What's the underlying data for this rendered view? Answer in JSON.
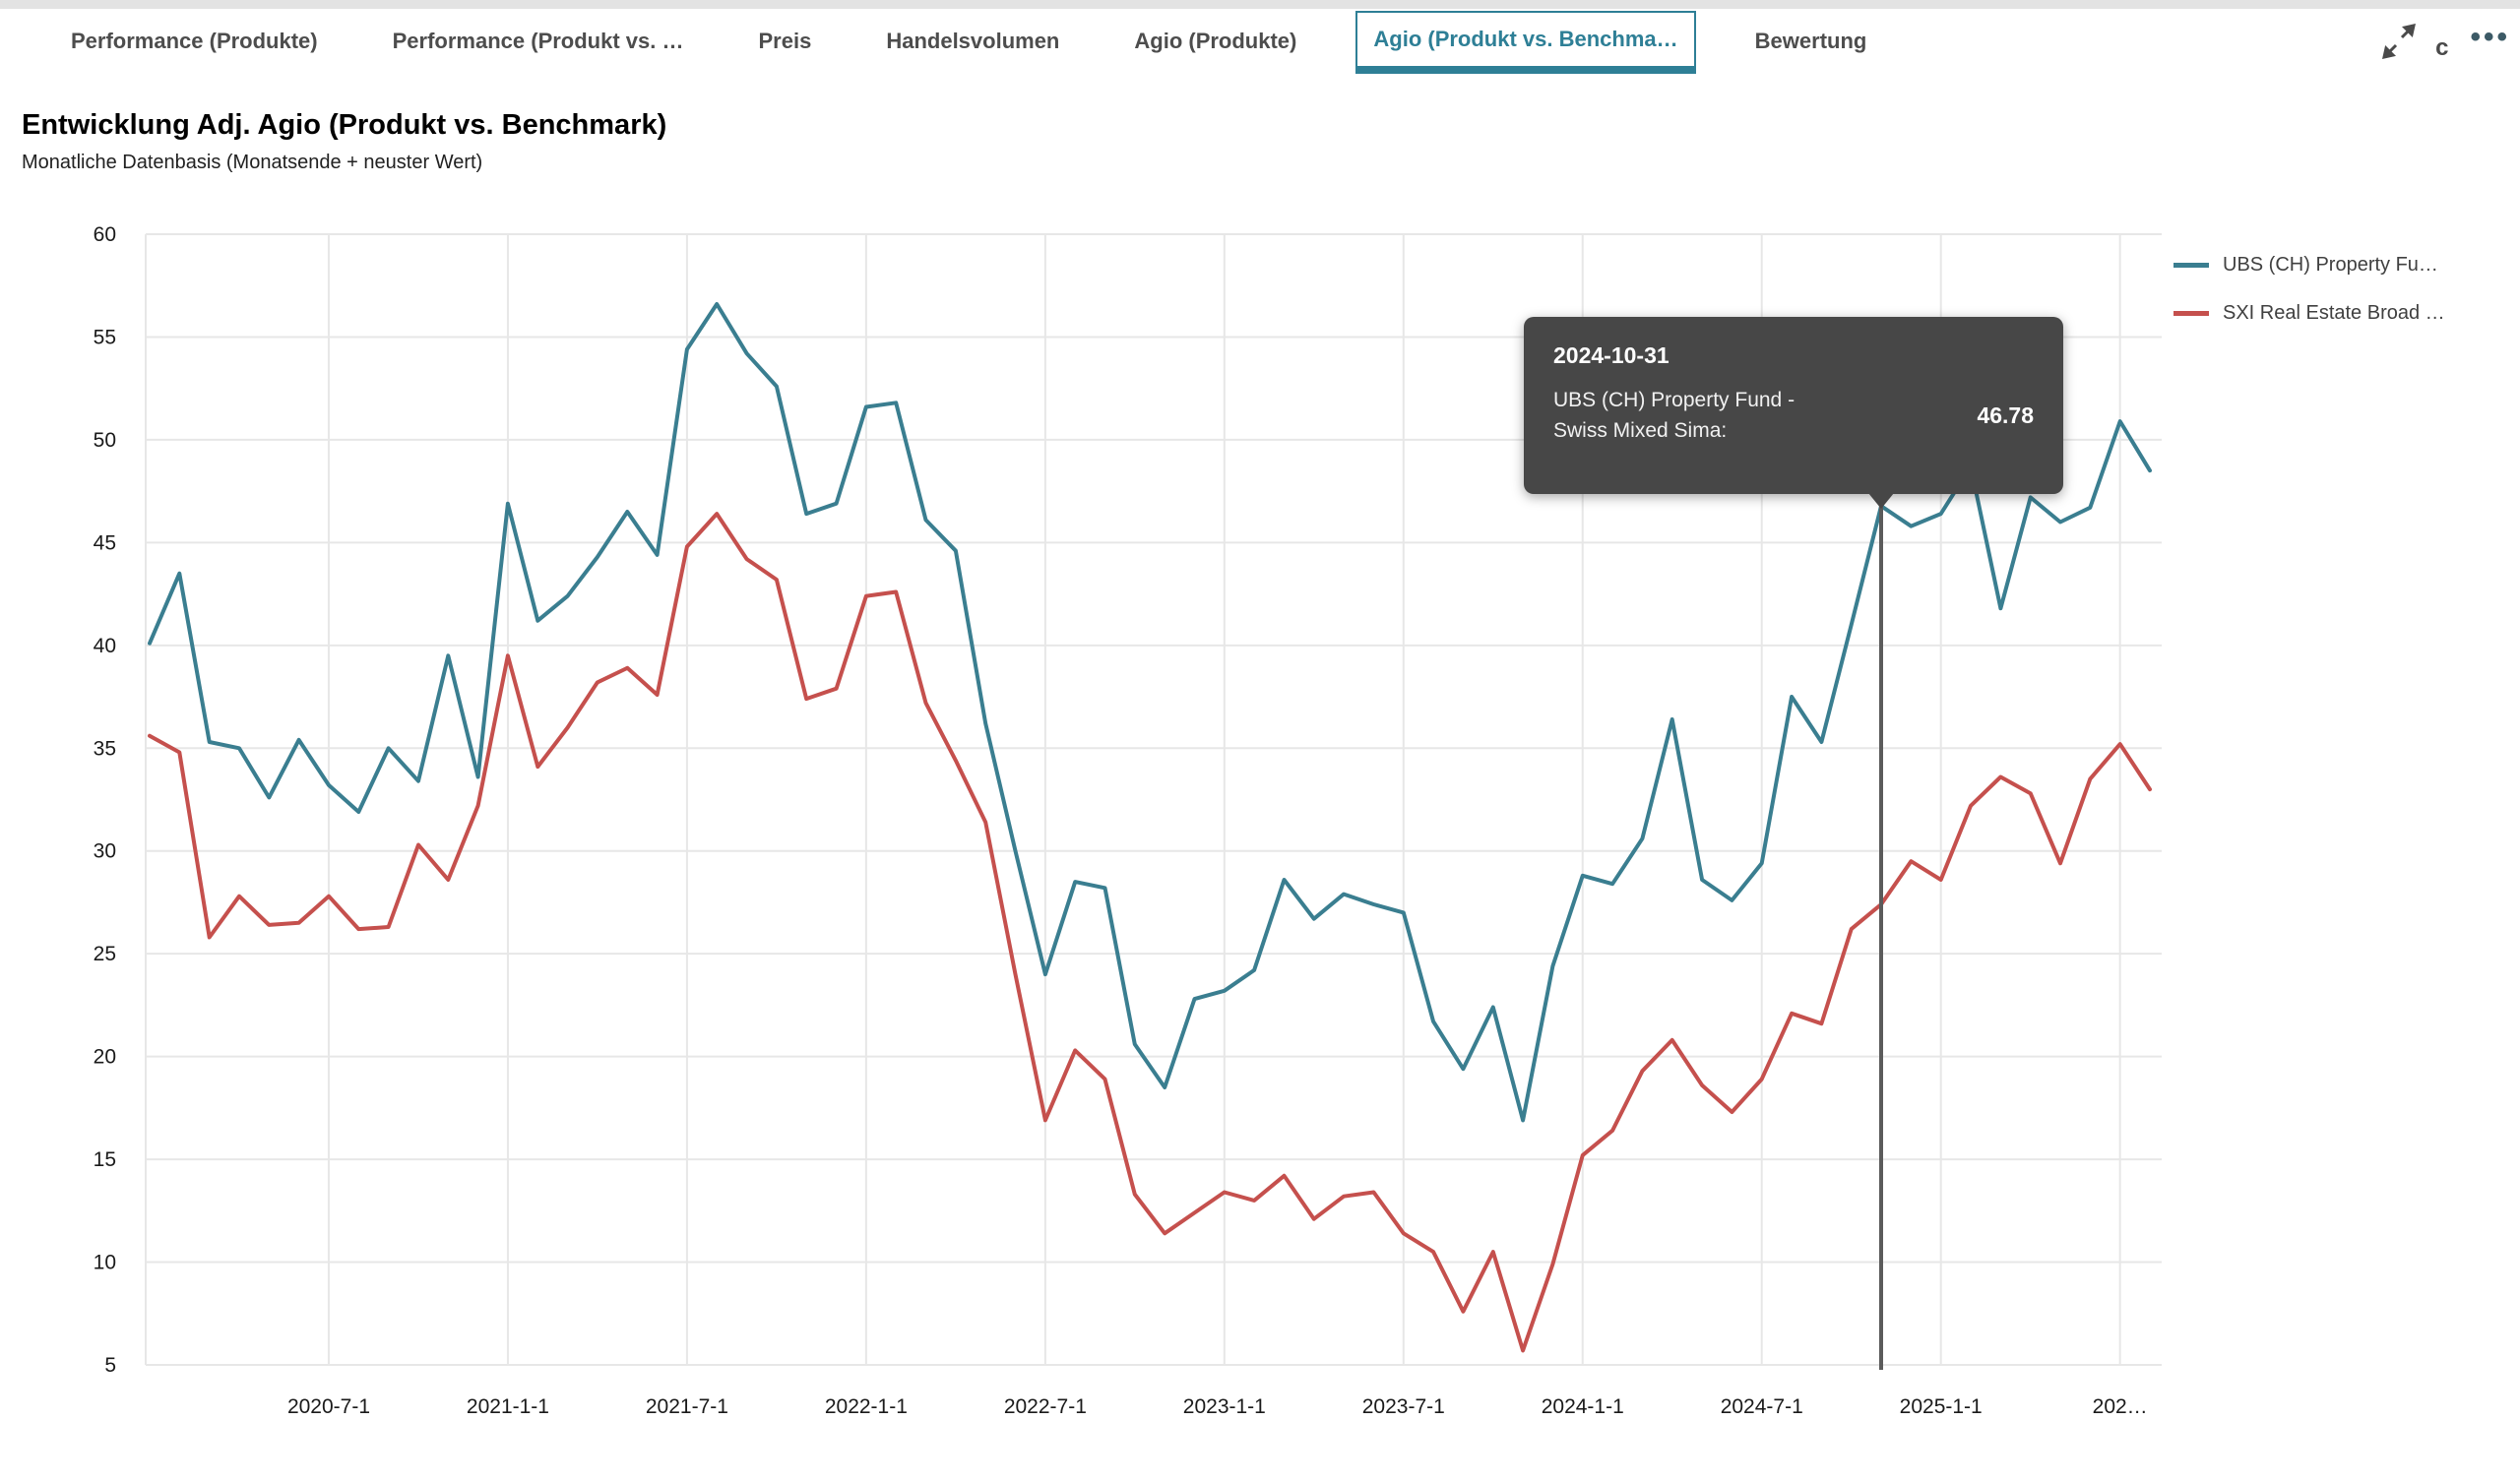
{
  "tab_bar": {
    "tabs": [
      {
        "id": "performance-produkte",
        "label": "Performance (Produkte)",
        "active": false
      },
      {
        "id": "performance-produkt-vs",
        "label": "Performance (Produkt vs. …",
        "active": false
      },
      {
        "id": "preis",
        "label": "Preis",
        "active": false
      },
      {
        "id": "handelsvolumen",
        "label": "Handelsvolumen",
        "active": false
      },
      {
        "id": "agio-produkte",
        "label": "Agio (Produkte)",
        "active": false
      },
      {
        "id": "agio-produkt-vs-benchmark",
        "label": "Agio (Produkt vs. Benchma…",
        "active": true
      },
      {
        "id": "bewertung",
        "label": "Bewertung",
        "active": false
      }
    ],
    "more_label": "•••",
    "c_glyph": "c"
  },
  "header": {
    "title": "Entwicklung Adj. Agio (Produkt vs. Benchmark)",
    "subtitle": "Monatliche Datenbasis (Monatsende + neuster Wert)"
  },
  "legend": {
    "items": [
      {
        "label": "UBS (CH) Property Fu…",
        "color": "#3a7e90"
      },
      {
        "label": "SXI Real Estate Broad …",
        "color": "#c5504d"
      }
    ]
  },
  "tooltip": {
    "date": "2024-10-31",
    "series_line1": "UBS (CH) Property Fund -",
    "series_line2": "Swiss Mixed Sima:",
    "value": "46.78"
  },
  "chart_data": {
    "type": "line",
    "title": "Entwicklung Adj. Agio (Produkt vs. Benchmark)",
    "xlabel": "",
    "ylabel": "",
    "ylim": [
      5,
      60
    ],
    "yticks": [
      5,
      10,
      15,
      20,
      25,
      30,
      35,
      40,
      45,
      50,
      55,
      60
    ],
    "grid": true,
    "legend_position": "top-right",
    "x": [
      "2019-12",
      "2020-01",
      "2020-02",
      "2020-03",
      "2020-04",
      "2020-05",
      "2020-06",
      "2020-07",
      "2020-08",
      "2020-09",
      "2020-10",
      "2020-11",
      "2020-12",
      "2021-01",
      "2021-02",
      "2021-03",
      "2021-04",
      "2021-05",
      "2021-06",
      "2021-07",
      "2021-08",
      "2021-09",
      "2021-10",
      "2021-11",
      "2021-12",
      "2022-01",
      "2022-02",
      "2022-03",
      "2022-04",
      "2022-05",
      "2022-06",
      "2022-07",
      "2022-08",
      "2022-09",
      "2022-10",
      "2022-11",
      "2022-12",
      "2023-01",
      "2023-02",
      "2023-03",
      "2023-04",
      "2023-05",
      "2023-06",
      "2023-07",
      "2023-08",
      "2023-09",
      "2023-10",
      "2023-11",
      "2023-12",
      "2024-01",
      "2024-02",
      "2024-03",
      "2024-04",
      "2024-05",
      "2024-06",
      "2024-07",
      "2024-08",
      "2024-09",
      "2024-10",
      "2024-11",
      "2024-12",
      "2025-01",
      "2025-02",
      "2025-03",
      "2025-04",
      "2025-05",
      "2025-06",
      "2025-07"
    ],
    "xticks": [
      {
        "label": "2020-7-1",
        "month_index": 6
      },
      {
        "label": "2021-1-1",
        "month_index": 12
      },
      {
        "label": "2021-7-1",
        "month_index": 18
      },
      {
        "label": "2022-1-1",
        "month_index": 24
      },
      {
        "label": "2022-7-1",
        "month_index": 30
      },
      {
        "label": "2023-1-1",
        "month_index": 36
      },
      {
        "label": "2023-7-1",
        "month_index": 42
      },
      {
        "label": "2024-1-1",
        "month_index": 48
      },
      {
        "label": "2024-7-1",
        "month_index": 54
      },
      {
        "label": "2025-1-1",
        "month_index": 60
      },
      {
        "label": "202…",
        "month_index": 66
      }
    ],
    "series": [
      {
        "name": "UBS (CH) Property Fund - Swiss Mixed Sima",
        "color": "#3a7e90",
        "values": [
          40.1,
          43.5,
          35.3,
          35.0,
          32.6,
          35.4,
          33.2,
          31.9,
          35.0,
          33.4,
          39.5,
          33.6,
          46.9,
          41.2,
          42.4,
          44.3,
          46.5,
          44.4,
          54.4,
          56.6,
          54.2,
          52.6,
          46.4,
          46.9,
          51.6,
          51.8,
          46.1,
          44.6,
          36.2,
          30.0,
          24.0,
          28.5,
          28.2,
          20.6,
          18.5,
          22.8,
          23.2,
          24.2,
          28.6,
          26.7,
          27.9,
          27.4,
          27.0,
          21.7,
          19.4,
          22.4,
          16.9,
          24.4,
          28.8,
          28.4,
          30.6,
          36.4,
          28.6,
          27.6,
          29.4,
          37.5,
          35.3,
          41.0,
          46.78,
          45.8,
          46.4,
          48.7,
          41.8,
          47.2,
          46.0,
          46.7,
          50.9,
          48.5
        ]
      },
      {
        "name": "SXI Real Estate Broad",
        "color": "#c5504d",
        "values": [
          35.6,
          34.8,
          25.8,
          27.8,
          26.4,
          26.5,
          27.8,
          26.2,
          26.3,
          30.3,
          28.6,
          32.2,
          39.5,
          34.1,
          36.0,
          38.2,
          38.9,
          37.6,
          44.8,
          46.4,
          44.2,
          43.2,
          37.4,
          37.9,
          42.4,
          42.6,
          37.2,
          34.4,
          31.4,
          24.0,
          16.9,
          20.3,
          18.9,
          13.3,
          11.4,
          12.4,
          13.4,
          13.0,
          14.2,
          12.1,
          13.2,
          13.4,
          11.4,
          10.5,
          7.6,
          10.5,
          5.7,
          9.9,
          15.2,
          16.4,
          19.3,
          20.8,
          18.6,
          17.3,
          18.9,
          22.1,
          21.6,
          26.2,
          27.4,
          29.5,
          28.6,
          32.2,
          33.6,
          32.8,
          29.4,
          33.5,
          35.2,
          33.0
        ]
      }
    ],
    "highlight": {
      "month_index": 58,
      "series_index": 0,
      "date": "2024-10-31",
      "value": 46.78
    }
  }
}
